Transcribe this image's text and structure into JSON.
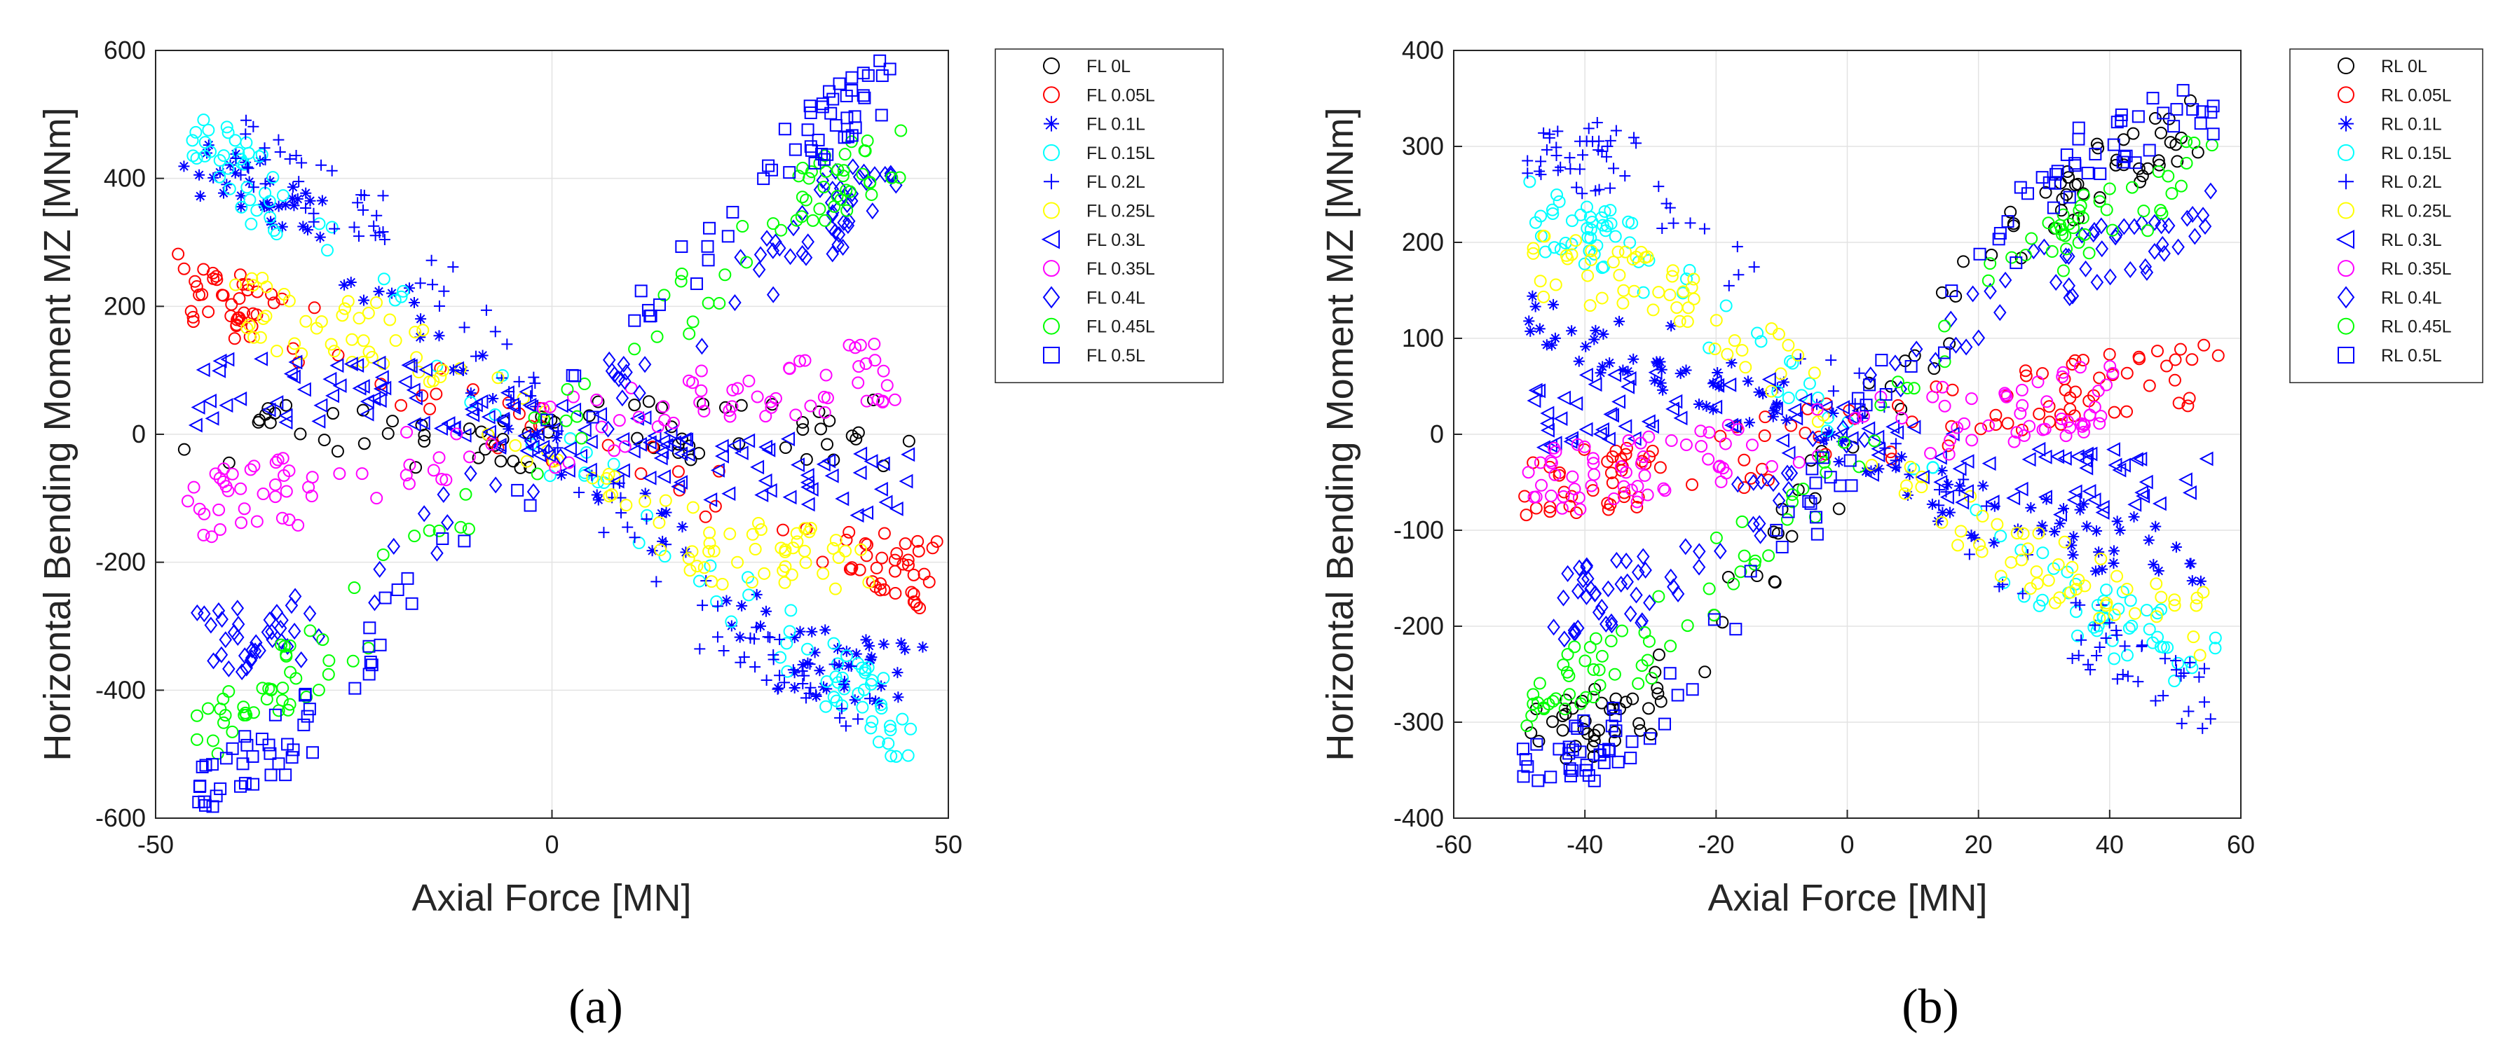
{
  "chart_data": [
    {
      "type": "scatter",
      "panel_label": "(a)",
      "xlabel": "Axial Force [MN]",
      "ylabel": "Horizontal Bending Moment MZ [MNm]",
      "xlim": [
        -50,
        50
      ],
      "ylim": [
        -600,
        600
      ],
      "xticks": [
        -50,
        0,
        50
      ],
      "yticks": [
        600,
        400,
        200,
        0,
        -200,
        -400,
        -600
      ],
      "grid": true,
      "legend_position": "outside-right-top",
      "series": [
        {
          "name": "FL 0L",
          "color": "#000000",
          "marker": "circle",
          "trend": [
            [
              -46,
              0
            ],
            [
              0,
              0
            ],
            [
              48,
              0
            ]
          ]
        },
        {
          "name": "FL 0.05L",
          "color": "#ff0000",
          "marker": "circle",
          "trend": [
            [
              -46,
              230
            ],
            [
              -38,
              190
            ],
            [
              38,
              -190
            ],
            [
              48,
              -220
            ]
          ]
        },
        {
          "name": "FL 0.1L",
          "color": "#0000ff",
          "marker": "asterisk",
          "trend": [
            [
              -46,
              420
            ],
            [
              -30,
              330
            ],
            [
              30,
              -350
            ],
            [
              47,
              -380
            ]
          ]
        },
        {
          "name": "FL 0.15L",
          "color": "#00ffff",
          "marker": "circle",
          "trend": [
            [
              -45,
              480
            ],
            [
              -35,
              360
            ],
            [
              35,
              -370
            ],
            [
              45,
              -470
            ]
          ]
        },
        {
          "name": "FL 0.2L",
          "color": "#0000ff",
          "marker": "plus",
          "trend": [
            [
              -40,
              460
            ],
            [
              -20,
              320
            ],
            [
              20,
              -300
            ],
            [
              40,
              -440
            ]
          ]
        },
        {
          "name": "FL 0.25L",
          "color": "#ffff00",
          "marker": "circle",
          "trend": [
            [
              -40,
              200
            ],
            [
              -20,
              150
            ],
            [
              20,
              -180
            ],
            [
              40,
              -200
            ]
          ]
        },
        {
          "name": "FL 0.3L",
          "color": "#0000ff",
          "marker": "triangle-left",
          "trend": [
            [
              -45,
              60
            ],
            [
              -20,
              80
            ],
            [
              0,
              0
            ],
            [
              20,
              -50
            ],
            [
              45,
              -80
            ]
          ]
        },
        {
          "name": "FL 0.35L",
          "color": "#ff00ff",
          "marker": "circle",
          "trend": [
            [
              -46,
              -120
            ],
            [
              -30,
              -80
            ],
            [
              20,
              50
            ],
            [
              43,
              105
            ]
          ]
        },
        {
          "name": "FL 0.4L",
          "color": "#0000ff",
          "marker": "diamond",
          "trend": [
            [
              -45,
              -330
            ],
            [
              -30,
              -300
            ],
            [
              30,
              300
            ],
            [
              44,
              420
            ]
          ]
        },
        {
          "name": "FL 0.45L",
          "color": "#00ff00",
          "marker": "circle",
          "trend": [
            [
              -45,
              -470
            ],
            [
              -30,
              -350
            ],
            [
              30,
              350
            ],
            [
              45,
              450
            ]
          ]
        },
        {
          "name": "FL 0.5L",
          "color": "#0000ff",
          "marker": "square",
          "trend": [
            [
              -45,
              -570
            ],
            [
              -30,
              -450
            ],
            [
              30,
              450
            ],
            [
              42,
              540
            ]
          ]
        }
      ]
    },
    {
      "type": "scatter",
      "panel_label": "(b)",
      "xlabel": "Axial Force [MN]",
      "ylabel": "Horizontal Bending Moment MZ [MNm]",
      "xlim": [
        -60,
        60
      ],
      "ylim": [
        -400,
        400
      ],
      "xticks": [
        -60,
        -40,
        -20,
        0,
        20,
        40,
        60
      ],
      "yticks": [
        400,
        300,
        200,
        100,
        0,
        -100,
        -200,
        -300,
        -400
      ],
      "grid": true,
      "legend_position": "outside-right-top",
      "series": [
        {
          "name": "RL 0L",
          "color": "#000000",
          "marker": "circle",
          "trend": [
            [
              -48,
              -320
            ],
            [
              -30,
              -280
            ],
            [
              30,
              240
            ],
            [
              55,
              330
            ]
          ]
        },
        {
          "name": "RL 0.05L",
          "color": "#ff0000",
          "marker": "circle",
          "trend": [
            [
              -48,
              -60
            ],
            [
              -30,
              -40
            ],
            [
              30,
              40
            ],
            [
              55,
              60
            ]
          ]
        },
        {
          "name": "RL 0.1L",
          "color": "#0000ff",
          "marker": "asterisk",
          "trend": [
            [
              -48,
              120
            ],
            [
              -20,
              60
            ],
            [
              20,
              -80
            ],
            [
              55,
              -140
            ]
          ]
        },
        {
          "name": "RL 0.15L",
          "color": "#00ffff",
          "marker": "circle",
          "trend": [
            [
              -48,
              230
            ],
            [
              -35,
              200
            ],
            [
              35,
              -180
            ],
            [
              55,
              -240
            ]
          ]
        },
        {
          "name": "RL 0.2L",
          "color": "#0000ff",
          "marker": "plus",
          "trend": [
            [
              -48,
              280
            ],
            [
              -35,
              290
            ],
            [
              35,
              -200
            ],
            [
              55,
              -280
            ]
          ]
        },
        {
          "name": "RL 0.25L",
          "color": "#ffff00",
          "marker": "circle",
          "trend": [
            [
              -48,
              180
            ],
            [
              -25,
              150
            ],
            [
              25,
              -130
            ],
            [
              55,
              -200
            ]
          ]
        },
        {
          "name": "RL 0.3L",
          "color": "#0000ff",
          "marker": "triangle-left",
          "trend": [
            [
              -48,
              20
            ],
            [
              -20,
              40
            ],
            [
              20,
              -40
            ],
            [
              55,
              -60
            ]
          ]
        },
        {
          "name": "RL 0.35L",
          "color": "#ff00ff",
          "marker": "circle",
          "trend": [
            [
              -48,
              -50
            ],
            [
              -30,
              -35
            ],
            [
              20,
              20
            ],
            [
              40,
              40
            ]
          ]
        },
        {
          "name": "RL 0.4L",
          "color": "#0000ff",
          "marker": "diamond",
          "trend": [
            [
              -45,
              -180
            ],
            [
              -30,
              -160
            ],
            [
              30,
              170
            ],
            [
              55,
              220
            ]
          ]
        },
        {
          "name": "RL 0.45L",
          "color": "#00ff00",
          "marker": "circle",
          "trend": [
            [
              -48,
              -280
            ],
            [
              -30,
              -220
            ],
            [
              30,
              200
            ],
            [
              55,
              280
            ]
          ]
        },
        {
          "name": "RL 0.5L",
          "color": "#0000ff",
          "marker": "square",
          "trend": [
            [
              -48,
              -350
            ],
            [
              -30,
              -300
            ],
            [
              30,
              260
            ],
            [
              55,
              350
            ]
          ]
        }
      ]
    }
  ]
}
